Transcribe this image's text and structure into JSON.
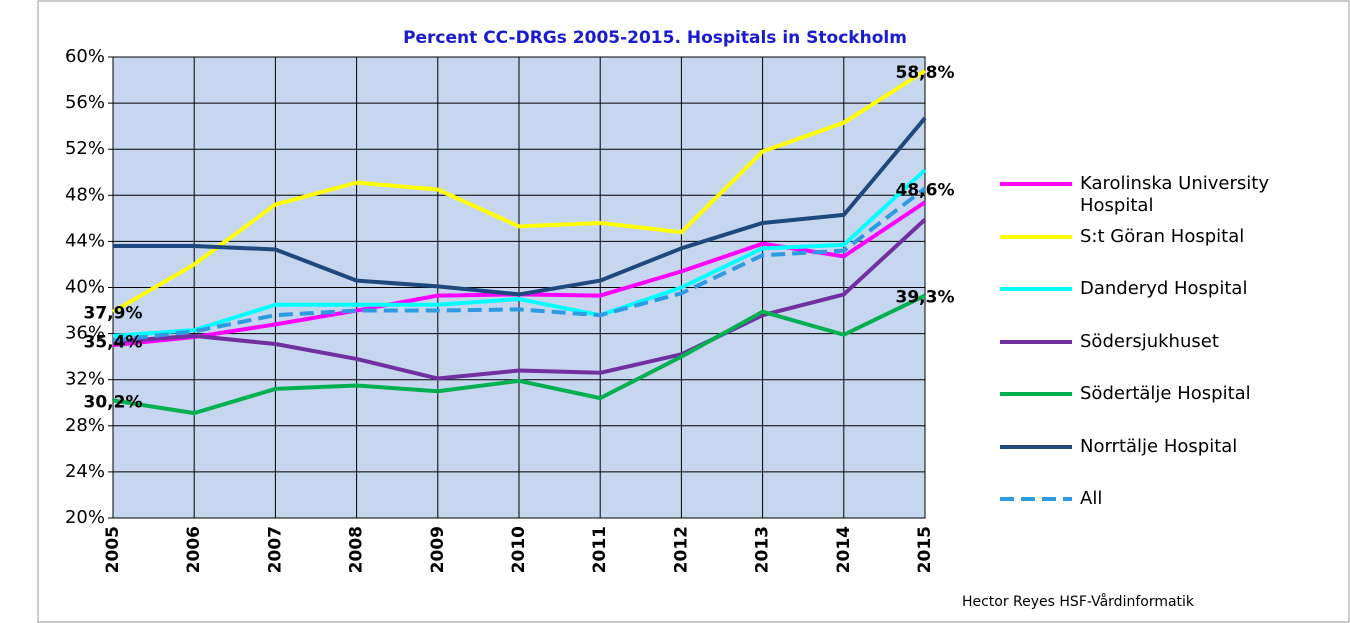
{
  "chart_data": {
    "type": "line",
    "title": "Percent CC-DRGs 2005-2015. Hospitals in Stockholm",
    "footnote": "Hector Reyes HSF-Vårdinformatik",
    "categories": [
      "2005",
      "2006",
      "2007",
      "2008",
      "2009",
      "2010",
      "2011",
      "2012",
      "2013",
      "2014",
      "2015"
    ],
    "ylim": [
      20,
      60
    ],
    "yticks": [
      {
        "value": 20,
        "label": "20%"
      },
      {
        "value": 24,
        "label": "24%"
      },
      {
        "value": 28,
        "label": "28%"
      },
      {
        "value": 32,
        "label": "32%"
      },
      {
        "value": 36,
        "label": "36%"
      },
      {
        "value": 40,
        "label": "40%"
      },
      {
        "value": 44,
        "label": "44%"
      },
      {
        "value": 48,
        "label": "48%"
      },
      {
        "value": 52,
        "label": "52%"
      },
      {
        "value": 56,
        "label": "56%"
      },
      {
        "value": 60,
        "label": "60%"
      }
    ],
    "grid": true,
    "legend": "right",
    "series": [
      {
        "name": "Karolinska University Hospital",
        "color": "#ff00ff",
        "values": [
          35.0,
          35.7,
          36.8,
          38.0,
          39.3,
          39.4,
          39.3,
          41.4,
          43.8,
          42.7,
          47.4
        ]
      },
      {
        "name": "S:t Göran Hospital",
        "color": "#ffff00",
        "values": [
          37.9,
          42.0,
          47.2,
          49.1,
          48.5,
          45.3,
          45.6,
          44.8,
          51.8,
          54.3,
          58.8
        ],
        "value_labels": [
          "37,9%",
          null,
          null,
          null,
          null,
          null,
          null,
          null,
          null,
          null,
          "58,8%"
        ]
      },
      {
        "name": "Danderyd Hospital",
        "color": "#00ffff",
        "values": [
          35.8,
          36.3,
          38.5,
          38.5,
          38.5,
          39.0,
          37.6,
          40.0,
          43.4,
          43.7,
          50.2
        ]
      },
      {
        "name": "Södersjukhuset",
        "color": "#7030a0",
        "values": [
          35.3,
          35.8,
          35.1,
          33.8,
          32.1,
          32.8,
          32.6,
          34.2,
          37.6,
          39.4,
          45.9
        ]
      },
      {
        "name": "Södertälje Hospital",
        "color": "#00b050",
        "values": [
          30.2,
          29.1,
          31.2,
          31.5,
          31.0,
          31.9,
          30.4,
          34.0,
          37.9,
          35.9,
          39.3
        ],
        "value_labels": [
          "30,2%",
          null,
          null,
          null,
          null,
          null,
          null,
          null,
          null,
          null,
          "39,3%"
        ]
      },
      {
        "name": "Norrtälje Hospital",
        "color": "#1f497d",
        "values": [
          43.6,
          43.6,
          43.3,
          40.6,
          40.1,
          39.4,
          40.6,
          43.4,
          45.6,
          46.3,
          54.7
        ]
      },
      {
        "name": "All",
        "color": "#2e9ae0",
        "dashed": true,
        "values": [
          35.4,
          36.2,
          37.6,
          38.0,
          38.0,
          38.1,
          37.6,
          39.5,
          42.8,
          43.2,
          48.6
        ],
        "value_labels": [
          "35,4%",
          null,
          null,
          null,
          null,
          null,
          null,
          null,
          null,
          null,
          "48,6%"
        ]
      }
    ]
  }
}
